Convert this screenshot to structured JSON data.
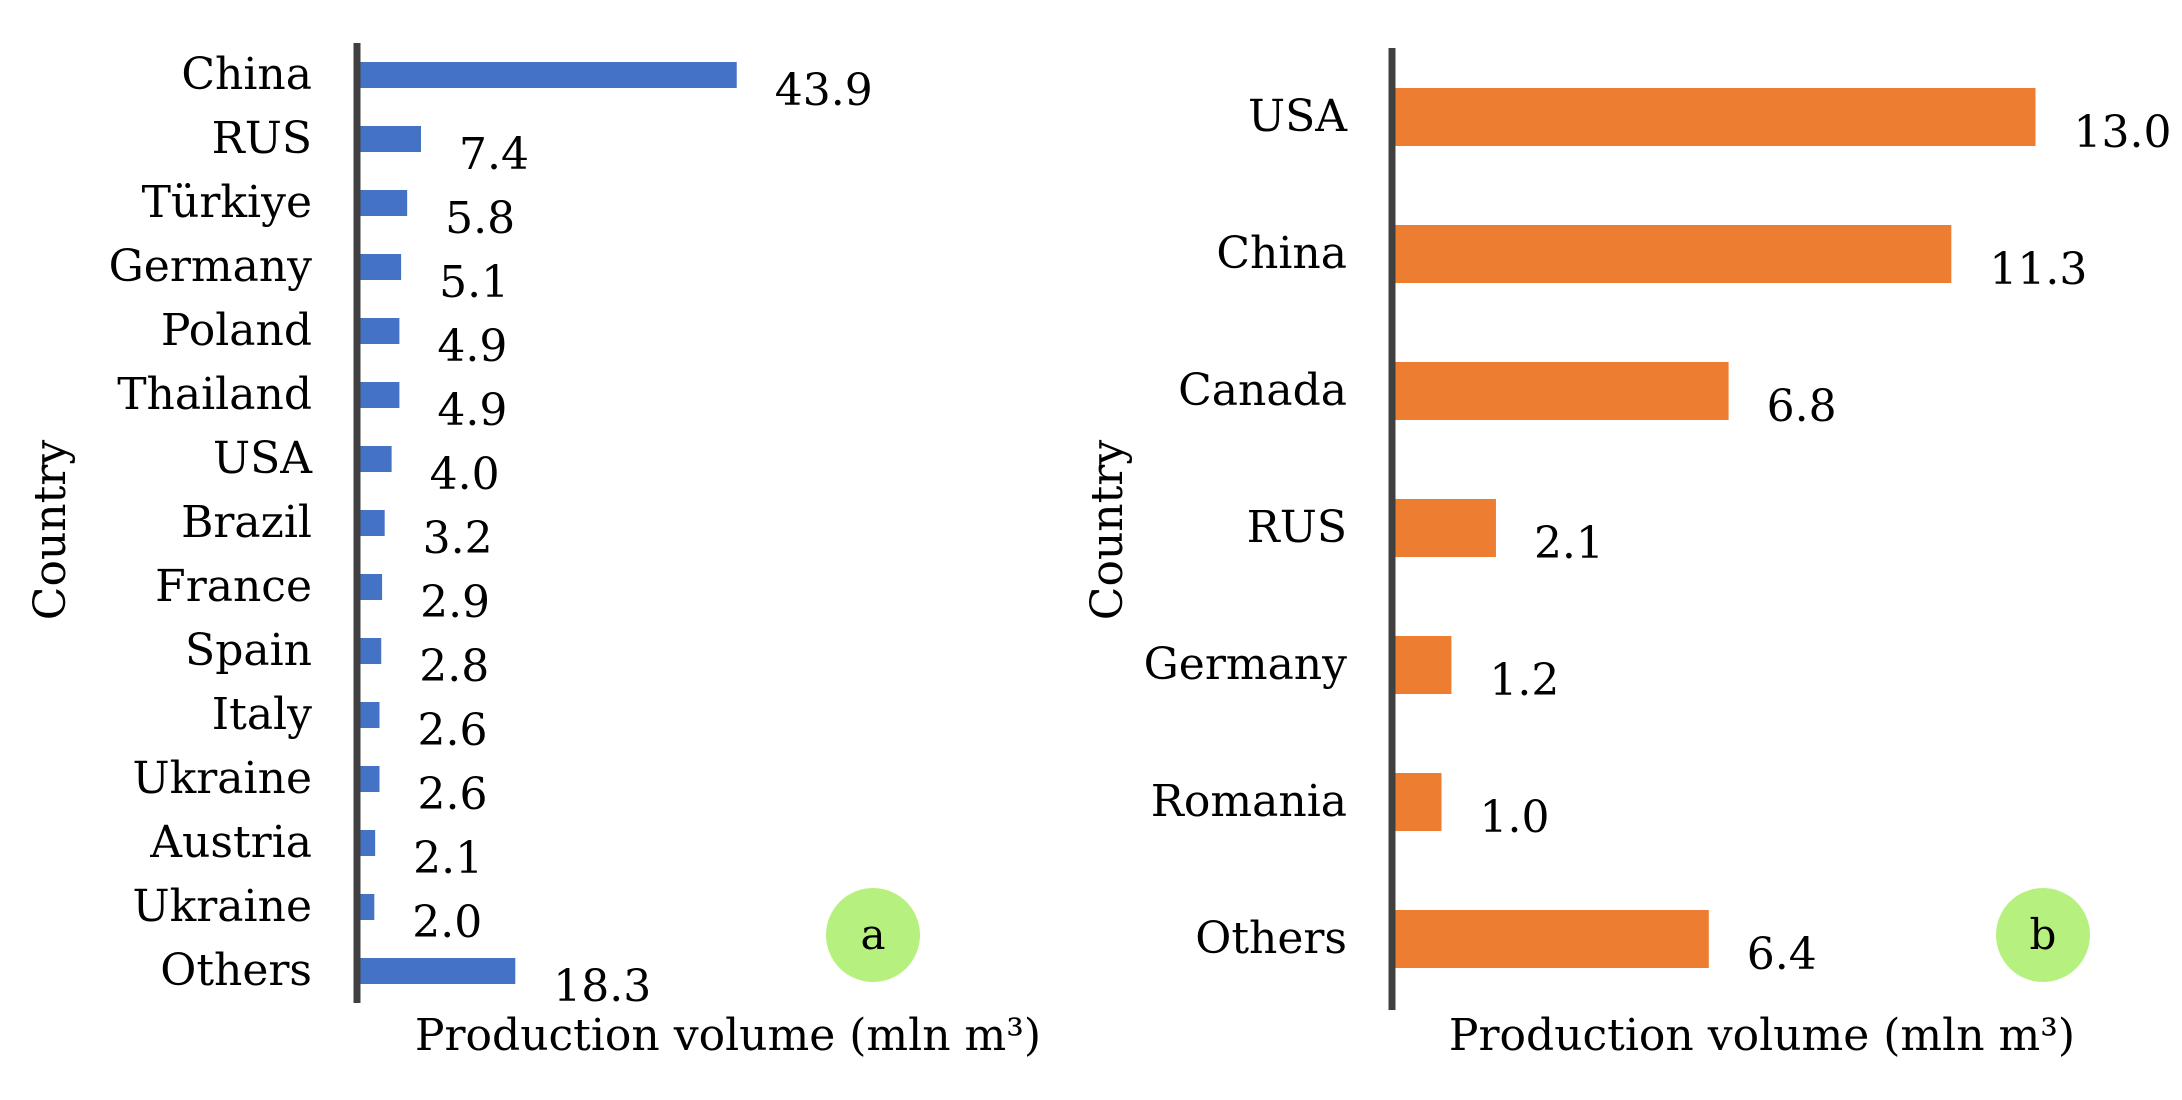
{
  "chart_data": [
    {
      "type": "bar",
      "orientation": "horizontal",
      "panel": "a",
      "xlabel": "Production volume (mln m³)",
      "ylabel": "Country",
      "categories": [
        "China",
        "RUS",
        "Türkiye",
        "Germany",
        "Poland",
        "Thailand",
        "USA",
        "Brazil",
        "France",
        "Spain",
        "Italy",
        "Ukraine",
        "Austria",
        "Ukraine",
        "Others"
      ],
      "values": [
        43.9,
        7.4,
        5.8,
        5.1,
        4.9,
        4.9,
        4.0,
        3.2,
        2.9,
        2.8,
        2.6,
        2.6,
        2.1,
        2.0,
        18.3
      ],
      "labels": [
        "43.9",
        "7.4",
        "5.8",
        "5.1",
        "4.9",
        "4.9",
        "4.0",
        "3.2",
        "2.9",
        "2.8",
        "2.6",
        "2.6",
        "2.1",
        "2.0",
        "18.3"
      ],
      "color": "#4472C4",
      "badge_color": "#B6F07E",
      "grid": false,
      "legend": "none"
    },
    {
      "type": "bar",
      "orientation": "horizontal",
      "panel": "b",
      "xlabel": "Production volume (mln m³)",
      "ylabel": "Country",
      "categories": [
        "USA",
        "China",
        "Canada",
        "RUS",
        "Germany",
        "Romania",
        "Others"
      ],
      "values": [
        13.0,
        11.3,
        6.8,
        2.1,
        1.2,
        1.0,
        6.4
      ],
      "labels": [
        "13.0",
        "11.3",
        "6.8",
        "2.1",
        "1.2",
        "1.0",
        "6.4"
      ],
      "color": "#ED7D31",
      "badge_color": "#B6F07E",
      "grid": false,
      "legend": "none"
    }
  ]
}
